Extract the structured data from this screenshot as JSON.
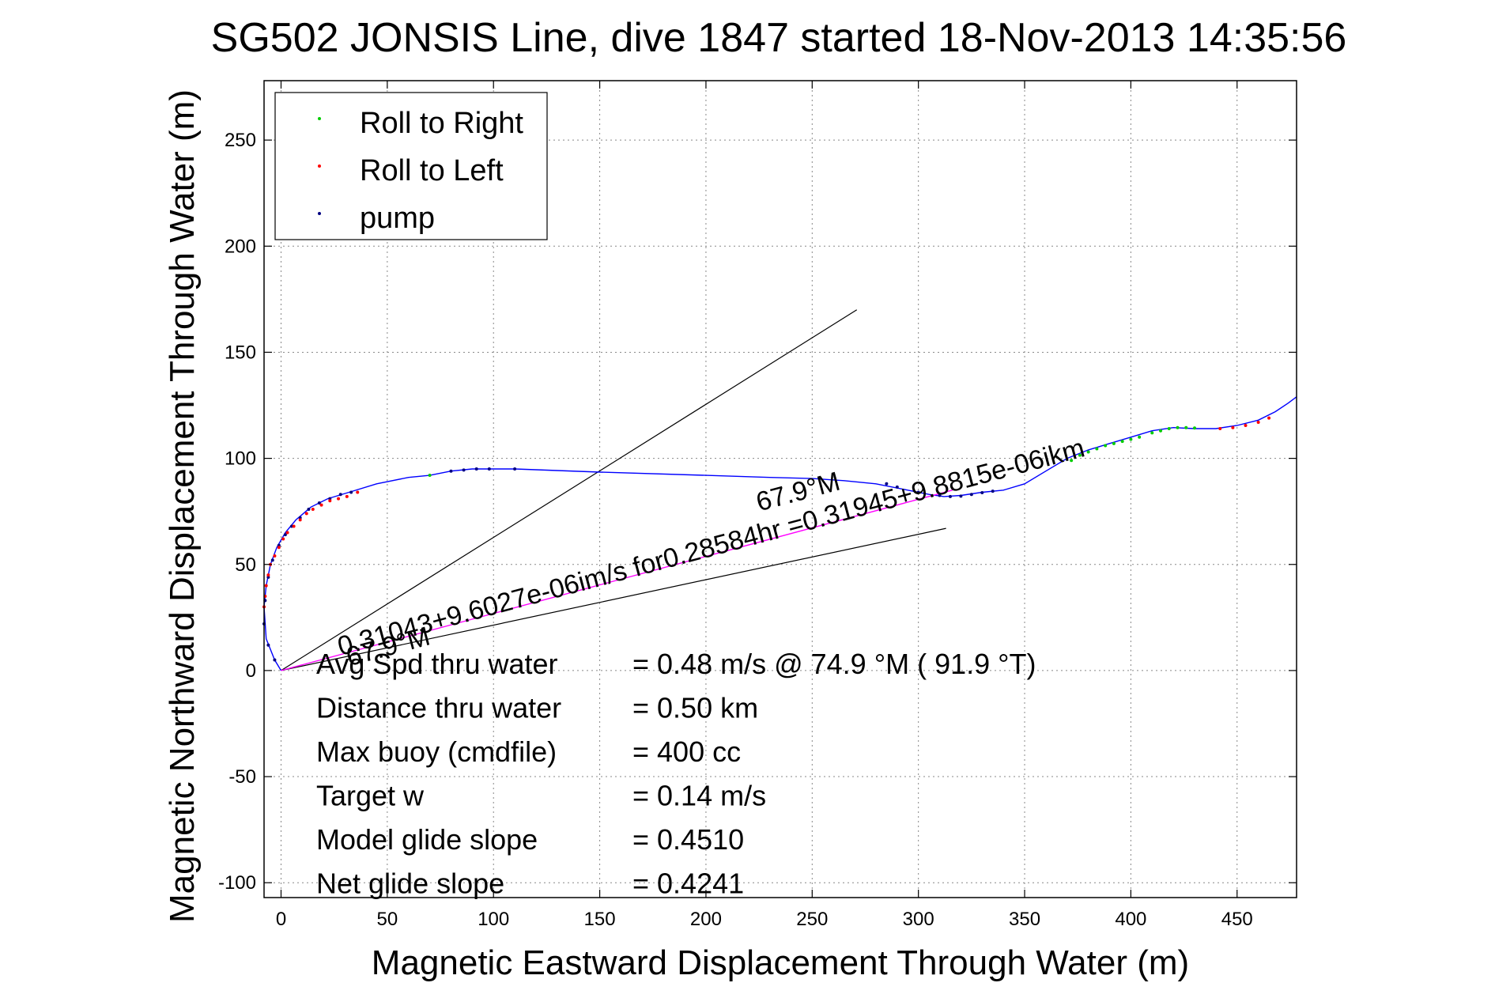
{
  "chart_data": {
    "type": "line",
    "title": "SG502 JONSIS Line, dive 1847 started 18-Nov-2013 14:35:56",
    "xlabel": "Magnetic Eastward Displacement Through Water (m)",
    "ylabel": "Magnetic Northward Displacement Through Water (m)",
    "xlim": [
      -8,
      478
    ],
    "ylim": [
      -107,
      278
    ],
    "xticks": [
      0,
      50,
      100,
      150,
      200,
      250,
      300,
      350,
      400,
      450
    ],
    "yticks": [
      -100,
      -50,
      0,
      50,
      100,
      150,
      200,
      250
    ],
    "xtick_labels": [
      "0",
      "50",
      "100",
      "150",
      "200",
      "250",
      "300",
      "350",
      "400",
      "450"
    ],
    "ytick_labels": [
      "-100",
      "-50",
      "0",
      "50",
      "100",
      "150",
      "200",
      "250"
    ],
    "grid": true,
    "legend_position": "top-left",
    "legend": [
      {
        "label": "Roll to Right",
        "color": "#00cc00"
      },
      {
        "label": "Roll to Left",
        "color": "#ff0000"
      },
      {
        "label": "pump",
        "color": "#000080"
      }
    ],
    "series": [
      {
        "color": "#0000ff",
        "x": [
          0,
          -3,
          -7,
          -8,
          -7,
          -5,
          -2,
          2,
          7,
          14,
          22,
          32,
          45,
          60,
          70,
          80,
          90,
          100,
          110,
          150,
          200,
          230,
          250,
          265,
          280,
          295,
          305,
          312,
          320,
          330,
          340,
          350,
          360,
          370,
          380,
          390,
          400,
          410,
          420,
          430,
          440,
          450,
          460,
          468,
          474,
          478
        ],
        "y": [
          0,
          5,
          15,
          30,
          40,
          50,
          58,
          65,
          71,
          77,
          81,
          84,
          88,
          91,
          92,
          94,
          95,
          95,
          95,
          93.5,
          92,
          91,
          90.5,
          89.5,
          88,
          85,
          83,
          82,
          82.5,
          84,
          85,
          88,
          94,
          100,
          104,
          107,
          110,
          113,
          114.5,
          114,
          114,
          115.5,
          118,
          122,
          126,
          129
        ]
      },
      {
        "color": "#ff00ff",
        "x": [
          0,
          316
        ],
        "y": [
          0,
          85
        ]
      }
    ],
    "markers": {
      "roll_right": {
        "color": "#00cc00",
        "x": [
          70,
          372,
          376,
          380,
          384,
          388,
          392,
          396,
          400,
          404,
          410,
          414,
          418,
          422,
          426,
          430
        ],
        "y": [
          92,
          99,
          101.5,
          103,
          104.5,
          106,
          107,
          108,
          109,
          110,
          112,
          113,
          114,
          114.5,
          114.5,
          114.3
        ]
      },
      "roll_left": {
        "color": "#ff0000",
        "x": [
          -8,
          -7.5,
          -7,
          -6,
          -5,
          -3,
          -1,
          1,
          3,
          6,
          9,
          12,
          15,
          19,
          23,
          27,
          31,
          36,
          442,
          448,
          454,
          460,
          465
        ],
        "y": [
          30,
          35,
          40,
          45,
          50,
          54,
          58,
          62,
          65,
          68,
          71,
          74,
          76,
          78,
          80,
          81,
          82,
          84,
          114,
          114.5,
          115.5,
          117,
          119
        ]
      },
      "pump": {
        "color": "#000080",
        "x": [
          -3,
          -6,
          -8,
          -7.5,
          -6,
          -4,
          -1,
          2,
          5,
          9,
          13,
          18,
          23,
          28,
          33,
          80,
          86,
          92,
          98,
          110,
          285,
          290,
          300,
          310,
          315,
          320,
          325,
          330,
          335
        ],
        "y": [
          5,
          12,
          22,
          33,
          44,
          52,
          59,
          64,
          68,
          72,
          76,
          79,
          81,
          83,
          84,
          94,
          94.5,
          95,
          95,
          95,
          88,
          86.5,
          84,
          82.5,
          82,
          82.2,
          83,
          83.8,
          84.5
        ]
      }
    },
    "reference_lines": [
      {
        "color": "#000000",
        "x": [
          0,
          271
        ],
        "y": [
          0,
          170
        ]
      },
      {
        "color": "#000000",
        "x": [
          0,
          313
        ],
        "y": [
          0,
          67
        ]
      }
    ],
    "annotations": [
      {
        "text": "0.31043+9.6027e-06im/s for0.28584hr =0.31945+9.8815e-06ikm",
        "x": 28,
        "y": 7,
        "angle": 15
      },
      {
        "text": "67.9°M",
        "x": 32,
        "y": 2,
        "angle": 15
      },
      {
        "text": "67.9°M",
        "x": 225,
        "y": 75,
        "angle": 15
      }
    ],
    "stats": [
      {
        "label": "Avg Spd thru water",
        "value": "=  0.48 m/s @  74.9 °M ( 91.9 °T)"
      },
      {
        "label": "Distance thru water",
        "value": "=  0.50 km"
      },
      {
        "label": "Max buoy (cmdfile)",
        "value": "= 400 cc"
      },
      {
        "label": "Target w",
        "value": "= 0.14 m/s"
      },
      {
        "label": "Model glide slope",
        "value": "= 0.4510"
      },
      {
        "label": "Net glide slope",
        "value": "= 0.4241"
      }
    ]
  }
}
